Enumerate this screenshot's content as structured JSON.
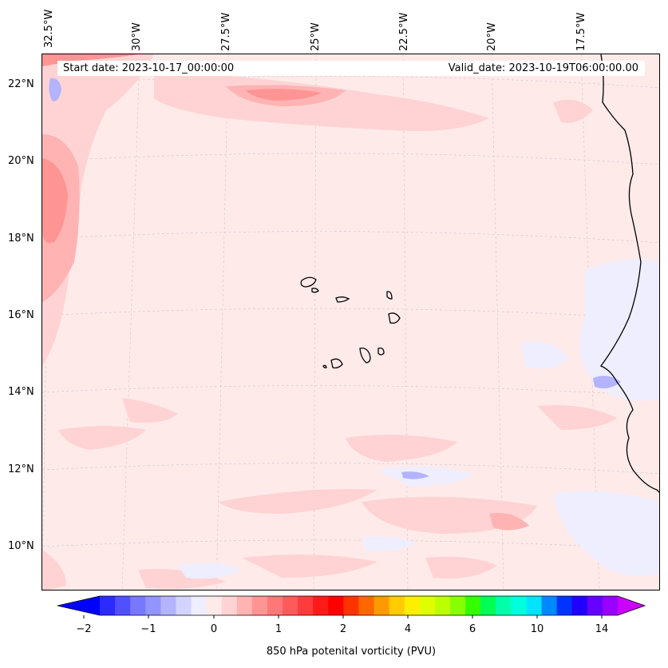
{
  "map": {
    "start_date_label": "Start date: 2023-10-17_00:00:00",
    "valid_date_label": "Valid_date: 2023-10-19T06:00:00.00",
    "longitude_labels": [
      "32.5°W",
      "30°W",
      "27.5°W",
      "25°W",
      "22.5°W",
      "20°W",
      "17.5°W"
    ],
    "latitude_labels": [
      "22°N",
      "20°N",
      "18°N",
      "16°N",
      "14°N",
      "12°N",
      "10°N"
    ],
    "extent": {
      "lon_min": -32.5,
      "lon_max": -15.6,
      "lat_min": 8.9,
      "lat_max": 22.8
    },
    "projection_gridlines": true
  },
  "colorbar": {
    "title": "850 hPa potenital vorticity (PVU)",
    "tick_labels": [
      "−2",
      "−1",
      "0",
      "1",
      "2",
      "4",
      "6",
      "10",
      "14"
    ],
    "colors": [
      "#0000ff",
      "#2b2bff",
      "#5050ff",
      "#7777ff",
      "#9494ff",
      "#b3b3ff",
      "#d3d3ff",
      "#eeeeff",
      "#ffeaea",
      "#ffd3d3",
      "#ffb3b3",
      "#ff9494",
      "#ff7777",
      "#ff5a5a",
      "#ff3b3b",
      "#ff1a1a",
      "#ff0000",
      "#ff3300",
      "#ff6600",
      "#ff9900",
      "#ffcc00",
      "#ffee00",
      "#ddff00",
      "#bbff00",
      "#88ff00",
      "#33ff00",
      "#00ff55",
      "#00ffaa",
      "#00ffdd",
      "#00e5ff",
      "#0088ff",
      "#0033ff",
      "#2200ff",
      "#6600ff",
      "#9900ff",
      "#cc00ff"
    ],
    "extend": "both"
  }
}
